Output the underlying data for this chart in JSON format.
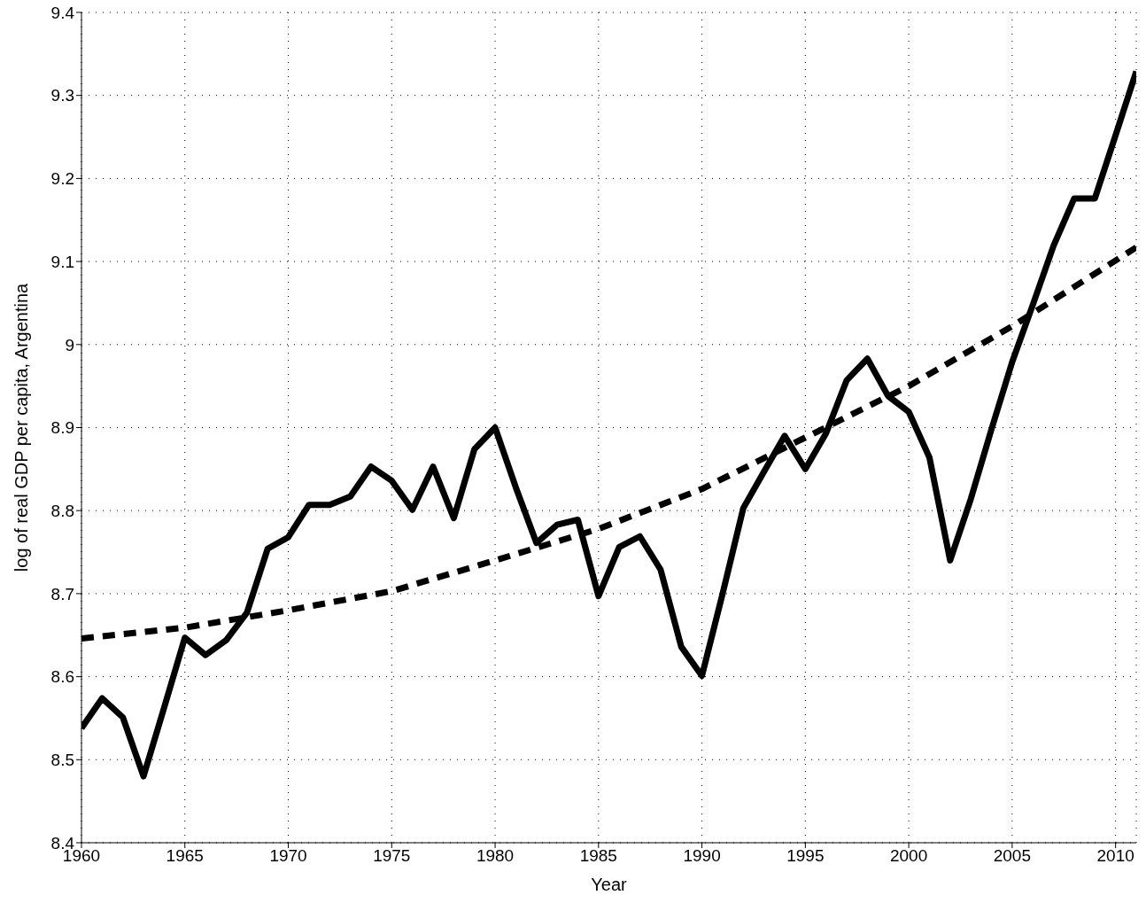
{
  "chart_data": {
    "type": "line",
    "xlabel": "Year",
    "ylabel": "log of real GDP per capita, Argentina",
    "x": [
      1960,
      1961,
      1962,
      1963,
      1964,
      1965,
      1966,
      1967,
      1968,
      1969,
      1970,
      1971,
      1972,
      1973,
      1974,
      1975,
      1976,
      1977,
      1978,
      1979,
      1980,
      1981,
      1982,
      1983,
      1984,
      1985,
      1986,
      1987,
      1988,
      1989,
      1990,
      1991,
      1992,
      1993,
      1994,
      1995,
      1996,
      1997,
      1998,
      1999,
      2000,
      2001,
      2002,
      2003,
      2004,
      2005,
      2006,
      2007,
      2008,
      2009,
      2010,
      2011
    ],
    "xlim": [
      1960,
      2011
    ],
    "xticks": [
      1960,
      1965,
      1970,
      1975,
      1980,
      1985,
      1990,
      1995,
      2000,
      2005,
      2010
    ],
    "ylim": [
      8.4,
      9.4
    ],
    "yticks": [
      8.4,
      8.5,
      8.6,
      8.7,
      8.8,
      8.9,
      9,
      9.1,
      9.2,
      9.3,
      9.4
    ],
    "grid": true,
    "marker": "none",
    "series": [
      {
        "color": "#000000",
        "line_style": "solid",
        "values": [
          8.538,
          8.574,
          8.551,
          8.48,
          8.563,
          8.647,
          8.626,
          8.644,
          8.677,
          8.754,
          8.768,
          8.807,
          8.807,
          8.817,
          8.853,
          8.836,
          8.801,
          8.853,
          8.791,
          8.874,
          8.9,
          8.828,
          8.761,
          8.783,
          8.789,
          8.697,
          8.756,
          8.769,
          8.729,
          8.636,
          8.601,
          8.7,
          8.803,
          8.847,
          8.89,
          8.85,
          8.893,
          8.957,
          8.983,
          8.938,
          8.919,
          8.864,
          8.74,
          8.814,
          8.898,
          8.979,
          9.048,
          9.119,
          9.176,
          9.176,
          9.252,
          9.329
        ]
      },
      {
        "type": "line",
        "color": "#000000",
        "line_style": "dashed",
        "x": [
          1960,
          1965,
          1970,
          1975,
          1980,
          1985,
          1990,
          1995,
          2000,
          2005,
          2011
        ],
        "values": [
          8.646,
          8.659,
          8.68,
          8.703,
          8.74,
          8.778,
          8.826,
          8.888,
          8.95,
          9.022,
          9.117
        ]
      }
    ]
  }
}
